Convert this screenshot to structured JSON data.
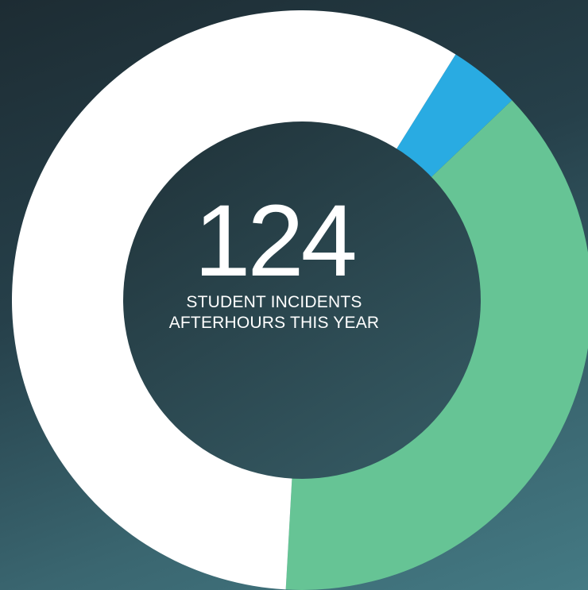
{
  "chart_data": {
    "type": "pie",
    "style": "donut",
    "slices": [
      {
        "value": 4,
        "color": "#29abe2"
      },
      {
        "value": 38,
        "color": "#66c495"
      },
      {
        "value": 58,
        "color": "#ffffff"
      }
    ],
    "start_angle_deg": 32,
    "center_value": "124",
    "center_caption_line1": "STUDENT INCIDENTS",
    "center_caption_line2": "AFTERHOURS THIS YEAR",
    "center_color": "#28464f"
  }
}
